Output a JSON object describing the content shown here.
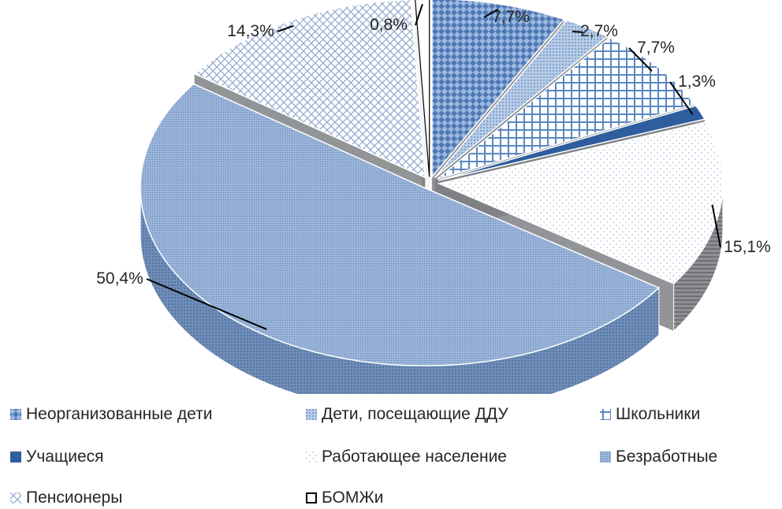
{
  "chart_data": {
    "type": "pie",
    "style": "3d-exploded",
    "categories": [
      "Неорганизованные дети",
      "Дети, посещающие ДДУ",
      "Школьники",
      "Учащиеся",
      "Работающее население",
      "Безработные",
      "Пенсионеры",
      "БОМЖи"
    ],
    "values": [
      7.7,
      2.7,
      7.7,
      1.3,
      15.1,
      50.4,
      14.3,
      0.8
    ],
    "data_labels": [
      "7,7%",
      "2,7%",
      "7,7%",
      "1,3%",
      "15,1%",
      "50,4%",
      "14,3%",
      "0,8%"
    ],
    "unit": "%",
    "legend_position": "bottom",
    "colors": [
      "#5B86C0",
      "#9DB8DC",
      "#8AA8D4",
      "#2E5E9E",
      "#DCE2EC",
      "#8FA9CF",
      "#B7C9E3",
      "#FFFFFF"
    ],
    "patterns": [
      "diamond",
      "dots",
      "cross",
      "solid",
      "sparse-dots",
      "fine-dots",
      "diagonal-cross",
      "none"
    ]
  },
  "legend": {
    "items": [
      {
        "label": "Неорганизованные дети",
        "icon": "diamond-pattern-swatch"
      },
      {
        "label": "Дети, посещающие ДДУ",
        "icon": "dotted-swatch"
      },
      {
        "label": "Школьники",
        "icon": "cross-swatch"
      },
      {
        "label": "Учащиеся",
        "icon": "solid-swatch"
      },
      {
        "label": "Работающее население",
        "icon": "sparse-dot-swatch"
      },
      {
        "label": "Безработные",
        "icon": "fine-dot-swatch"
      },
      {
        "label": "Пенсионеры",
        "icon": "diagonal-cross-swatch"
      },
      {
        "label": "БОМЖи",
        "icon": "empty-swatch"
      }
    ]
  }
}
